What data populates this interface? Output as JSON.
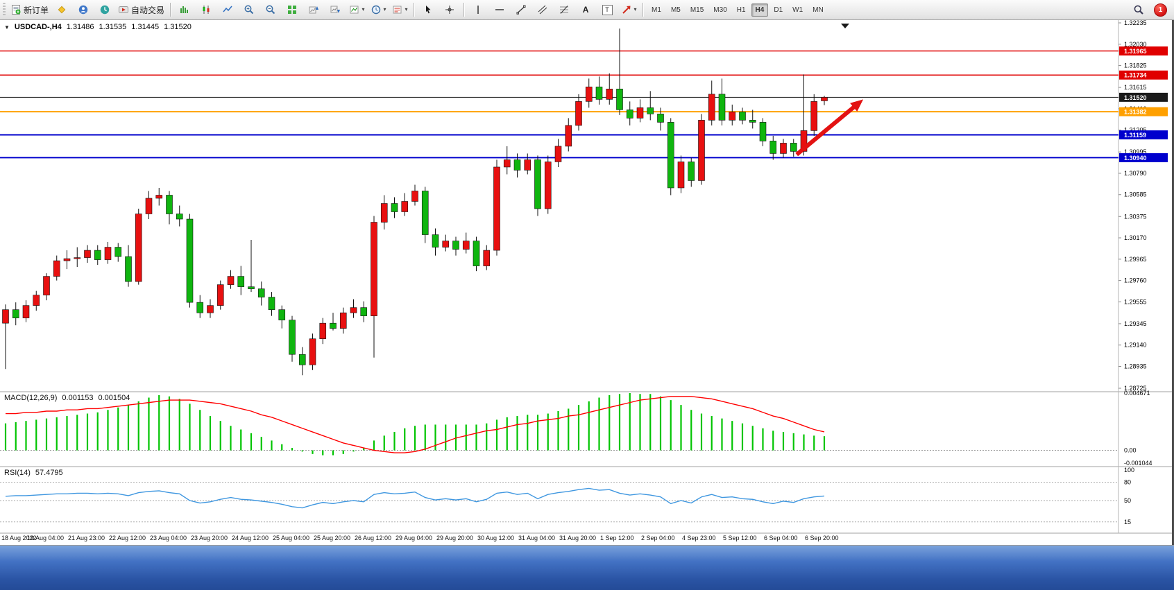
{
  "toolbar": {
    "new_order_label": "新订单",
    "auto_trading_label": "自动交易",
    "timeframes": [
      "M1",
      "M5",
      "M15",
      "M30",
      "H1",
      "H4",
      "D1",
      "W1",
      "MN"
    ],
    "active_timeframe": "H4",
    "notification_badge": "1"
  },
  "icons": {
    "text_tool": "A",
    "label_tool": "T",
    "dropdown_caret": "▾",
    "symbol_caret": "▼"
  },
  "chart": {
    "symbol_period": "USDCAD-,H4"
  },
  "chart_data": {
    "type": "candlestick",
    "symbol": "USDCAD-",
    "timeframe": "H4",
    "quote": {
      "open": "1.31486",
      "high": "1.31535",
      "low": "1.31445",
      "close": "1.31520"
    },
    "up_color": "#e81010",
    "down_color": "#0fb50f",
    "wick_color": "#111111",
    "price_axis": {
      "max": 1.32235,
      "min": 1.28725,
      "labels": [
        "1.32235",
        "1.32030",
        "1.31825",
        "1.31615",
        "1.31410",
        "1.31205",
        "1.30995",
        "1.30790",
        "1.30585",
        "1.30375",
        "1.30170",
        "1.29965",
        "1.29760",
        "1.29555",
        "1.29345",
        "1.29140",
        "1.28935",
        "1.28725"
      ]
    },
    "x_label_step": 4,
    "x_labels": [
      "18 Aug 2022",
      "19 Aug 04:00",
      "21 Aug 23:00",
      "22 Aug 12:00",
      "23 Aug 04:00",
      "23 Aug 20:00",
      "24 Aug 12:00",
      "25 Aug 04:00",
      "25 Aug 20:00",
      "26 Aug 12:00",
      "29 Aug 04:00",
      "29 Aug 20:00",
      "30 Aug 12:00",
      "31 Aug 04:00",
      "31 Aug 20:00",
      "1 Sep 12:00",
      "2 Sep 04:00",
      "4 Sep 23:00",
      "5 Sep 12:00",
      "6 Sep 04:00",
      "6 Sep 20:00"
    ],
    "candles": [
      [
        1.2935,
        1.2953,
        1.2891,
        1.2948
      ],
      [
        1.2948,
        1.2955,
        1.2933,
        1.294
      ],
      [
        1.294,
        1.2957,
        1.2936,
        1.2952
      ],
      [
        1.2952,
        1.2966,
        1.2947,
        1.2962
      ],
      [
        1.2962,
        1.2983,
        1.2957,
        1.298
      ],
      [
        1.298,
        1.3,
        1.2976,
        1.2995
      ],
      [
        1.2995,
        1.3005,
        1.2987,
        1.2997
      ],
      [
        1.2997,
        1.3008,
        1.2989,
        1.2998
      ],
      [
        1.2998,
        1.301,
        1.2993,
        1.3005
      ],
      [
        1.3005,
        1.301,
        1.2991,
        1.2996
      ],
      [
        1.2996,
        1.3013,
        1.2992,
        1.3008
      ],
      [
        1.3008,
        1.3012,
        1.2994,
        1.2999
      ],
      [
        1.2999,
        1.301,
        1.297,
        1.2975
      ],
      [
        1.2975,
        1.3045,
        1.2972,
        1.304
      ],
      [
        1.304,
        1.3062,
        1.3035,
        1.3055
      ],
      [
        1.3055,
        1.3065,
        1.3048,
        1.3058
      ],
      [
        1.3058,
        1.3062,
        1.303,
        1.304
      ],
      [
        1.304,
        1.3048,
        1.3028,
        1.3035
      ],
      [
        1.3035,
        1.304,
        1.295,
        1.2955
      ],
      [
        1.2955,
        1.2962,
        1.294,
        1.2945
      ],
      [
        1.2945,
        1.2958,
        1.294,
        1.2952
      ],
      [
        1.2952,
        1.2976,
        1.2948,
        1.2972
      ],
      [
        1.2972,
        1.2986,
        1.2968,
        1.298
      ],
      [
        1.298,
        1.299,
        1.2962,
        1.297
      ],
      [
        1.297,
        1.3015,
        1.2965,
        1.2968
      ],
      [
        1.2968,
        1.2975,
        1.2952,
        1.296
      ],
      [
        1.296,
        1.2965,
        1.2942,
        1.2948
      ],
      [
        1.2948,
        1.2952,
        1.293,
        1.2938
      ],
      [
        1.2938,
        1.2942,
        1.2898,
        1.2905
      ],
      [
        1.2905,
        1.2912,
        1.2885,
        1.2895
      ],
      [
        1.2895,
        1.2925,
        1.289,
        1.292
      ],
      [
        1.292,
        1.294,
        1.2915,
        1.2935
      ],
      [
        1.2935,
        1.2945,
        1.2928,
        1.293
      ],
      [
        1.293,
        1.295,
        1.2925,
        1.2945
      ],
      [
        1.2945,
        1.2958,
        1.294,
        1.295
      ],
      [
        1.295,
        1.2956,
        1.2936,
        1.2942
      ],
      [
        1.2942,
        1.3038,
        1.2902,
        1.3032
      ],
      [
        1.3032,
        1.3058,
        1.3025,
        1.305
      ],
      [
        1.305,
        1.3056,
        1.3036,
        1.3042
      ],
      [
        1.3042,
        1.306,
        1.3038,
        1.3052
      ],
      [
        1.3052,
        1.3068,
        1.3048,
        1.3062
      ],
      [
        1.3062,
        1.3066,
        1.3012,
        1.302
      ],
      [
        1.302,
        1.3026,
        1.3,
        1.3008
      ],
      [
        1.3008,
        1.302,
        1.3004,
        1.3014
      ],
      [
        1.3014,
        1.3018,
        1.3,
        1.3006
      ],
      [
        1.3006,
        1.3022,
        1.3002,
        1.3014
      ],
      [
        1.3014,
        1.3018,
        1.2985,
        1.299
      ],
      [
        1.299,
        1.301,
        1.2986,
        1.3005
      ],
      [
        1.3005,
        1.3092,
        1.3,
        1.3085
      ],
      [
        1.3085,
        1.3105,
        1.3078,
        1.3092
      ],
      [
        1.3092,
        1.3098,
        1.3075,
        1.3082
      ],
      [
        1.3082,
        1.3098,
        1.3078,
        1.3092
      ],
      [
        1.3092,
        1.3096,
        1.3038,
        1.3045
      ],
      [
        1.3045,
        1.3096,
        1.304,
        1.309
      ],
      [
        1.309,
        1.3112,
        1.3085,
        1.3105
      ],
      [
        1.3105,
        1.3132,
        1.31,
        1.3125
      ],
      [
        1.3125,
        1.3155,
        1.312,
        1.3148
      ],
      [
        1.3148,
        1.317,
        1.3142,
        1.3162
      ],
      [
        1.3162,
        1.3172,
        1.3145,
        1.315
      ],
      [
        1.315,
        1.3175,
        1.3145,
        1.316
      ],
      [
        1.316,
        1.3218,
        1.3135,
        1.314
      ],
      [
        1.314,
        1.3148,
        1.3125,
        1.3132
      ],
      [
        1.3132,
        1.315,
        1.3128,
        1.3142
      ],
      [
        1.3142,
        1.3158,
        1.313,
        1.3136
      ],
      [
        1.3136,
        1.3142,
        1.312,
        1.3128
      ],
      [
        1.3128,
        1.3132,
        1.3058,
        1.3065
      ],
      [
        1.3065,
        1.3096,
        1.306,
        1.309
      ],
      [
        1.309,
        1.3094,
        1.3066,
        1.3072
      ],
      [
        1.3072,
        1.3136,
        1.3068,
        1.313
      ],
      [
        1.313,
        1.3168,
        1.3125,
        1.3155
      ],
      [
        1.3155,
        1.317,
        1.3125,
        1.313
      ],
      [
        1.313,
        1.3145,
        1.3125,
        1.3138
      ],
      [
        1.3138,
        1.3142,
        1.3126,
        1.313
      ],
      [
        1.313,
        1.314,
        1.3122,
        1.3128
      ],
      [
        1.3128,
        1.3132,
        1.3105,
        1.311
      ],
      [
        1.311,
        1.3115,
        1.3092,
        1.3098
      ],
      [
        1.3098,
        1.3112,
        1.3094,
        1.3108
      ],
      [
        1.3108,
        1.3112,
        1.3095,
        1.31
      ],
      [
        1.31,
        1.3174,
        1.3096,
        1.312
      ],
      [
        1.312,
        1.3155,
        1.3115,
        1.3148
      ],
      [
        1.31486,
        1.31535,
        1.31445,
        1.3152
      ]
    ],
    "hlines": [
      {
        "price": 1.31965,
        "label": "1.31965",
        "color": "#e00000",
        "width": 1.5
      },
      {
        "price": 1.31734,
        "label": "1.31734",
        "color": "#e00000",
        "width": 1.5
      },
      {
        "price": 1.3152,
        "label": "1.31520",
        "color": "#1a1a1a",
        "width": 1,
        "type": "bid"
      },
      {
        "price": 1.31382,
        "label": "1.31382",
        "color": "#ffa000",
        "width": 2
      },
      {
        "price": 1.31159,
        "label": "1.31159",
        "color": "#0000cd",
        "width": 2
      },
      {
        "price": 1.3094,
        "label": "1.30940",
        "color": "#0000cd",
        "width": 2
      }
    ],
    "arrow": {
      "start_bar": 77.3,
      "start_price": 1.3097,
      "end_bar": 83.8,
      "end_price": 1.315,
      "color": "#e31212"
    },
    "macd": {
      "label": "MACD(12,26,9)",
      "value_main": "0.001153",
      "value_signal": "0.001504",
      "axis_labels": [
        "0.004671",
        "0.00",
        "-0.001044"
      ],
      "max": 0.004671,
      "min": -0.001044,
      "histogram_color": "#00c400",
      "signal_color": "#ff0000",
      "histogram": [
        0.0022,
        0.0023,
        0.0024,
        0.0025,
        0.0026,
        0.0027,
        0.0028,
        0.0029,
        0.003,
        0.0031,
        0.0033,
        0.0035,
        0.0037,
        0.004,
        0.0043,
        0.0045,
        0.0044,
        0.0042,
        0.0038,
        0.0033,
        0.0028,
        0.0024,
        0.002,
        0.0017,
        0.0014,
        0.0011,
        0.0008,
        0.0005,
        0.0002,
        -0.0001,
        -0.0003,
        -0.0004,
        -0.0004,
        -0.0003,
        -0.0001,
        0.0002,
        0.0008,
        0.0012,
        0.0015,
        0.0018,
        0.002,
        0.0021,
        0.0021,
        0.0021,
        0.0021,
        0.0021,
        0.0021,
        0.0022,
        0.0025,
        0.0027,
        0.0028,
        0.0029,
        0.0029,
        0.003,
        0.0032,
        0.0034,
        0.0037,
        0.004,
        0.0043,
        0.0045,
        0.0046,
        0.004671,
        0.0046,
        0.0046,
        0.0044,
        0.0041,
        0.0037,
        0.0033,
        0.003,
        0.0028,
        0.0026,
        0.0024,
        0.0022,
        0.002,
        0.0018,
        0.0016,
        0.0015,
        0.0014,
        0.0013,
        0.0012,
        0.001153
      ],
      "signal": [
        0.003,
        0.003,
        0.0031,
        0.0031,
        0.0032,
        0.0032,
        0.0033,
        0.0033,
        0.0034,
        0.0034,
        0.0035,
        0.0036,
        0.0037,
        0.0038,
        0.0039,
        0.004,
        0.0041,
        0.0041,
        0.0041,
        0.004,
        0.0039,
        0.0038,
        0.0036,
        0.0034,
        0.0032,
        0.0029,
        0.0027,
        0.0024,
        0.0021,
        0.0018,
        0.0015,
        0.0012,
        0.0009,
        0.0006,
        0.0004,
        0.0002,
        0.0,
        -0.0001,
        -0.0002,
        -0.0002,
        -0.0001,
        0.0001,
        0.0004,
        0.0007,
        0.001,
        0.0012,
        0.0014,
        0.0016,
        0.0017,
        0.0019,
        0.0021,
        0.0022,
        0.0024,
        0.0025,
        0.0026,
        0.0028,
        0.0029,
        0.0031,
        0.0033,
        0.0035,
        0.0037,
        0.0039,
        0.0041,
        0.0042,
        0.0043,
        0.0044,
        0.0044,
        0.0044,
        0.0043,
        0.0042,
        0.004,
        0.0038,
        0.0036,
        0.0034,
        0.0031,
        0.0028,
        0.0026,
        0.0023,
        0.002,
        0.0017,
        0.001504
      ]
    },
    "rsi": {
      "label": "RSI(14)",
      "value": "57.4795",
      "axis_labels": [
        "100",
        "80",
        "50",
        "15"
      ],
      "levels": [
        80,
        50,
        15
      ],
      "color": "#3f97e0",
      "series": [
        57,
        58,
        58,
        59,
        60,
        61,
        61,
        62,
        62,
        61,
        62,
        61,
        58,
        63,
        65,
        66,
        63,
        61,
        50,
        46,
        48,
        52,
        55,
        52,
        51,
        49,
        47,
        44,
        40,
        38,
        43,
        47,
        45,
        48,
        50,
        48,
        60,
        63,
        61,
        62,
        64,
        55,
        51,
        53,
        51,
        53,
        48,
        52,
        62,
        64,
        60,
        62,
        53,
        60,
        63,
        65,
        68,
        70,
        67,
        68,
        62,
        59,
        61,
        59,
        56,
        45,
        50,
        46,
        56,
        60,
        55,
        56,
        53,
        52,
        48,
        45,
        49,
        47,
        53,
        56,
        57.48
      ]
    }
  }
}
